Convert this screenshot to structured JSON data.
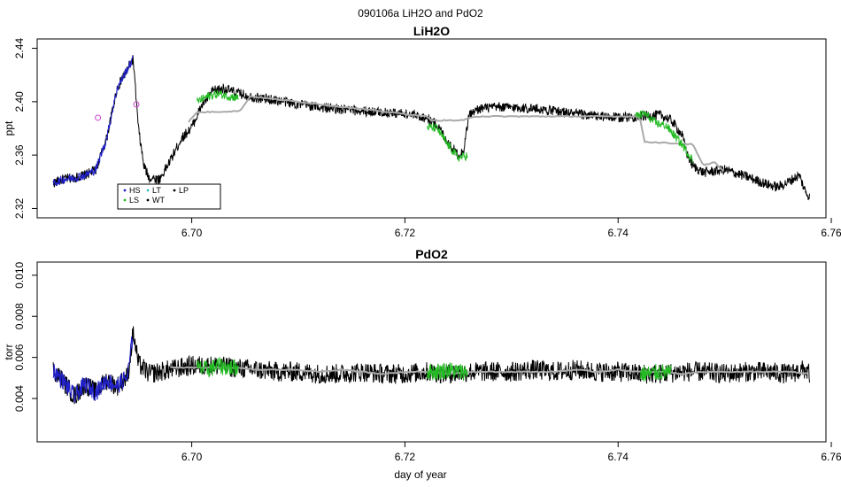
{
  "suptitle": "090106a   LiH2O and PdO2",
  "xlabel": "day of year",
  "legend": [
    {
      "label": "HS",
      "color": "#2222cc"
    },
    {
      "label": "LS",
      "color": "#22bb22"
    },
    {
      "label": "LT",
      "color": "#33bbbb"
    },
    {
      "label": "WT",
      "color": "#000000"
    },
    {
      "label": "LP",
      "color": "#000000"
    }
  ],
  "chart_data": [
    {
      "type": "line",
      "title": "LiH2O",
      "ylabel": "ppt",
      "xlim": [
        6.6855,
        6.7595
      ],
      "ylim": [
        2.313,
        2.447
      ],
      "xticks": [
        6.7,
        6.72,
        6.74,
        6.76
      ],
      "xtick_labels": [
        "6.70",
        "6.72",
        "6.74",
        "6.76"
      ],
      "yticks": [
        2.32,
        2.36,
        2.4,
        2.44
      ],
      "ytick_labels": [
        "2.32",
        "2.36",
        "2.40",
        "2.44"
      ],
      "series": [
        {
          "color": "#000000",
          "x": [
            6.687,
            6.688,
            6.689,
            6.69,
            6.691,
            6.692,
            6.693,
            6.694,
            6.6945,
            6.695,
            6.6955,
            6.696,
            6.697,
            6.698,
            6.699,
            6.7,
            6.701,
            6.702,
            6.703,
            6.704,
            6.706,
            6.708,
            6.71,
            6.712,
            6.714,
            6.716,
            6.718,
            6.72,
            6.722,
            6.723,
            6.724,
            6.725,
            6.7255,
            6.726,
            6.727,
            6.729,
            6.732,
            6.735,
            6.738,
            6.74,
            6.742,
            6.744,
            6.745,
            6.746,
            6.7465,
            6.747,
            6.748,
            6.75,
            6.752,
            6.754,
            6.755,
            6.756,
            6.757,
            6.7575,
            6.758
          ],
          "y": [
            2.339,
            2.342,
            2.343,
            2.345,
            2.349,
            2.372,
            2.41,
            2.425,
            2.432,
            2.38,
            2.352,
            2.343,
            2.342,
            2.356,
            2.372,
            2.381,
            2.398,
            2.408,
            2.41,
            2.407,
            2.403,
            2.401,
            2.398,
            2.396,
            2.394,
            2.393,
            2.392,
            2.391,
            2.388,
            2.383,
            2.37,
            2.36,
            2.363,
            2.39,
            2.395,
            2.396,
            2.395,
            2.392,
            2.389,
            2.388,
            2.389,
            2.39,
            2.386,
            2.375,
            2.36,
            2.352,
            2.347,
            2.349,
            2.344,
            2.338,
            2.336,
            2.34,
            2.345,
            2.334,
            2.328
          ]
        },
        {
          "color": "#aaaaaa",
          "x": [
            6.6997,
            6.7005,
            6.7045,
            6.7055,
            6.722,
            6.7225,
            6.7255,
            6.7265,
            6.742,
            6.7425,
            6.747,
            6.748,
            6.749,
            6.75
          ],
          "y": [
            2.385,
            2.392,
            2.393,
            2.404,
            2.389,
            2.386,
            2.386,
            2.389,
            2.389,
            2.37,
            2.368,
            2.352,
            2.355,
            2.347
          ]
        },
        {
          "color": "#2222cc",
          "x": [
            6.687,
            6.688,
            6.689,
            6.69,
            6.691,
            6.692,
            6.693,
            6.694,
            6.6945
          ],
          "y": [
            2.339,
            2.342,
            2.343,
            2.345,
            2.349,
            2.372,
            2.41,
            2.425,
            2.432
          ]
        },
        {
          "color": "#22bb22",
          "x": [
            6.7005,
            6.7015,
            6.7025,
            6.7035,
            6.723,
            6.724,
            6.725,
            6.7425,
            6.7435,
            6.7445,
            6.746,
            6.747
          ],
          "y": [
            2.4,
            2.404,
            2.406,
            2.404,
            2.38,
            2.368,
            2.358,
            2.391,
            2.384,
            2.382,
            2.368,
            2.356
          ]
        }
      ],
      "markers": [
        {
          "x": 6.6912,
          "y": 2.388,
          "color": "#cc44cc"
        },
        {
          "x": 6.6948,
          "y": 2.398,
          "color": "#cc44cc"
        }
      ]
    },
    {
      "type": "line",
      "title": "PdO2",
      "ylabel": "torr",
      "xlim": [
        6.6855,
        6.7595
      ],
      "ylim": [
        0.00189,
        0.01064
      ],
      "xticks": [
        6.7,
        6.72,
        6.74,
        6.76
      ],
      "xtick_labels": [
        "6.70",
        "6.72",
        "6.74",
        "6.76"
      ],
      "yticks": [
        0.004,
        0.006,
        0.008,
        0.01
      ],
      "ytick_labels": [
        "0.004",
        "0.006",
        "0.008",
        "0.010"
      ],
      "series": [
        {
          "color": "#000000",
          "x": [
            6.687,
            6.688,
            6.689,
            6.69,
            6.691,
            6.692,
            6.693,
            6.694,
            6.6945,
            6.695,
            6.696,
            6.698,
            6.7,
            6.702,
            6.704,
            6.706,
            6.708,
            6.71,
            6.712,
            6.714,
            6.716,
            6.718,
            6.72,
            6.722,
            6.724,
            6.726,
            6.728,
            6.73,
            6.732,
            6.734,
            6.736,
            6.738,
            6.74,
            6.742,
            6.744,
            6.746,
            6.748,
            6.75,
            6.752,
            6.754,
            6.756,
            6.7575,
            6.758
          ],
          "y": [
            0.0054,
            0.0048,
            0.0041,
            0.0047,
            0.0043,
            0.0049,
            0.0046,
            0.0051,
            0.0072,
            0.0057,
            0.0052,
            0.0054,
            0.0056,
            0.0056,
            0.0055,
            0.0054,
            0.0053,
            0.0053,
            0.0052,
            0.0052,
            0.0053,
            0.0052,
            0.0052,
            0.0053,
            0.0052,
            0.0053,
            0.0053,
            0.0053,
            0.0054,
            0.0053,
            0.0054,
            0.0053,
            0.0053,
            0.0052,
            0.0052,
            0.0053,
            0.0053,
            0.0052,
            0.0053,
            0.0053,
            0.0052,
            0.0054,
            0.0052
          ]
        },
        {
          "color": "#aaaaaa",
          "x": [
            6.698,
            6.7,
            6.702,
            6.704,
            6.706,
            6.708,
            6.71,
            6.712,
            6.714,
            6.716,
            6.718,
            6.72,
            6.722,
            6.724,
            6.726,
            6.728,
            6.73,
            6.732,
            6.734,
            6.736,
            6.738,
            6.74,
            6.742,
            6.744,
            6.746,
            6.748,
            6.75,
            6.752,
            6.754,
            6.756,
            6.758
          ],
          "y": [
            0.0055,
            0.0055,
            0.0055,
            0.0055,
            0.0054,
            0.0054,
            0.0054,
            0.0053,
            0.0054,
            0.0053,
            0.0052,
            0.0053,
            0.0053,
            0.0052,
            0.0053,
            0.0053,
            0.0053,
            0.0053,
            0.0053,
            0.0054,
            0.0053,
            0.0054,
            0.0053,
            0.0053,
            0.0052,
            0.0053,
            0.0053,
            0.0053,
            0.0053,
            0.0053,
            0.0052
          ]
        },
        {
          "color": "#2222cc",
          "x": [
            6.687,
            6.688,
            6.689,
            6.69,
            6.691,
            6.692,
            6.693,
            6.694,
            6.6945
          ],
          "y": [
            0.0054,
            0.0048,
            0.0041,
            0.0047,
            0.0043,
            0.0049,
            0.0046,
            0.0051,
            0.0072
          ]
        },
        {
          "color": "#22bb22",
          "x": [
            6.7005,
            6.7015,
            6.7025,
            6.7035,
            6.723,
            6.724,
            6.725,
            6.743,
            6.744,
            6.745
          ],
          "y": [
            0.0055,
            0.0054,
            0.0056,
            0.0055,
            0.0053,
            0.0054,
            0.0053,
            0.0052,
            0.0053,
            0.0052
          ]
        }
      ]
    }
  ]
}
